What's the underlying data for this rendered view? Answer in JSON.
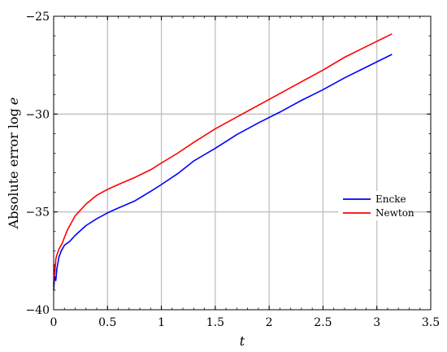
{
  "chart_data": {
    "type": "line",
    "title": "",
    "xlabel": "t",
    "ylabel_text": "Absolute error log",
    "ylabel_var": "e",
    "xlim": [
      0,
      3.5
    ],
    "ylim": [
      -40,
      -25
    ],
    "xticks": [
      0,
      0.5,
      1,
      1.5,
      2,
      2.5,
      3,
      3.5
    ],
    "xtick_labels": [
      "0",
      "0.5",
      "1",
      "1.5",
      "2",
      "2.5",
      "3",
      "3.5"
    ],
    "yticks": [
      -40,
      -35,
      -30,
      -25
    ],
    "ytick_labels": [
      "−40",
      "−35",
      "−30",
      "−25"
    ],
    "grid": true,
    "legend_position": "center-right",
    "series": [
      {
        "name": "Encke",
        "color": "#0000ff",
        "x": [
          0.0,
          0.01,
          0.02,
          0.03,
          0.05,
          0.07,
          0.1,
          0.15,
          0.2,
          0.3,
          0.4,
          0.5,
          0.6,
          0.75,
          0.9,
          1.0,
          1.15,
          1.3,
          1.5,
          1.7,
          1.9,
          2.1,
          2.3,
          2.5,
          2.7,
          2.9,
          3.14
        ],
        "y": [
          -39.0,
          -38.3,
          -38.5,
          -37.9,
          -37.3,
          -37.0,
          -36.7,
          -36.5,
          -36.2,
          -35.7,
          -35.35,
          -35.05,
          -34.8,
          -34.45,
          -33.95,
          -33.6,
          -33.05,
          -32.4,
          -31.75,
          -31.05,
          -30.45,
          -29.9,
          -29.3,
          -28.75,
          -28.15,
          -27.6,
          -26.95
        ]
      },
      {
        "name": "Newton",
        "color": "#ff0000",
        "x": [
          0.0,
          0.005,
          0.01,
          0.02,
          0.03,
          0.05,
          0.08,
          0.1,
          0.13,
          0.16,
          0.2,
          0.25,
          0.3,
          0.4,
          0.5,
          0.6,
          0.75,
          0.9,
          1.0,
          1.15,
          1.3,
          1.5,
          1.7,
          1.9,
          2.1,
          2.3,
          2.5,
          2.7,
          2.9,
          3.14
        ],
        "y": [
          -38.8,
          -37.7,
          -38.2,
          -37.4,
          -37.2,
          -36.9,
          -36.6,
          -36.3,
          -35.9,
          -35.6,
          -35.2,
          -34.9,
          -34.6,
          -34.15,
          -33.85,
          -33.6,
          -33.25,
          -32.85,
          -32.5,
          -32.0,
          -31.45,
          -30.75,
          -30.15,
          -29.55,
          -28.95,
          -28.35,
          -27.75,
          -27.1,
          -26.55,
          -25.9
        ]
      }
    ]
  }
}
